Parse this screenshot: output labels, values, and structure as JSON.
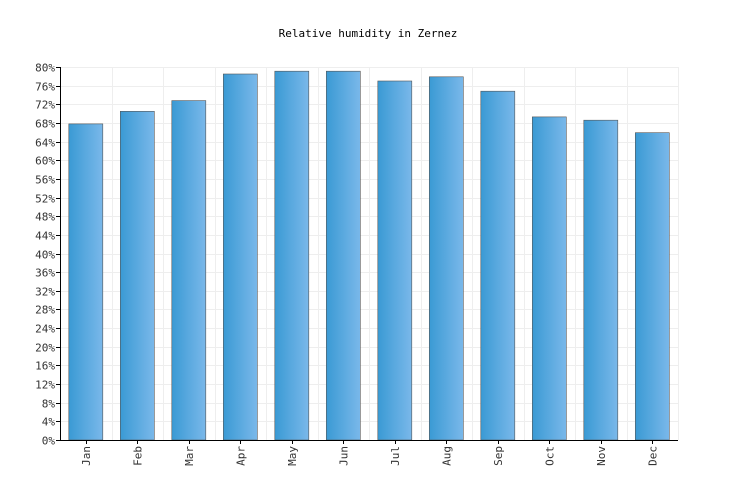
{
  "chart_data": {
    "type": "bar",
    "title": "Relative humidity in Zernez",
    "xlabel": "",
    "ylabel": "",
    "categories": [
      "Jan",
      "Feb",
      "Mar",
      "Apr",
      "May",
      "Jun",
      "Jul",
      "Aug",
      "Sep",
      "Oct",
      "Nov",
      "Dec"
    ],
    "values": [
      67.8,
      70.5,
      72.8,
      78.5,
      79.1,
      79.1,
      77.0,
      77.9,
      74.8,
      69.3,
      68.6,
      65.9
    ],
    "ylim": [
      0,
      80
    ],
    "ytick_step": 4,
    "ytick_suffix": "%",
    "grid": true,
    "colors": {
      "bar_light": "#7ab8ea",
      "bar_dark": "#3a9ad4",
      "bar_edge": "#555555",
      "grid": "#eeeeee"
    }
  }
}
